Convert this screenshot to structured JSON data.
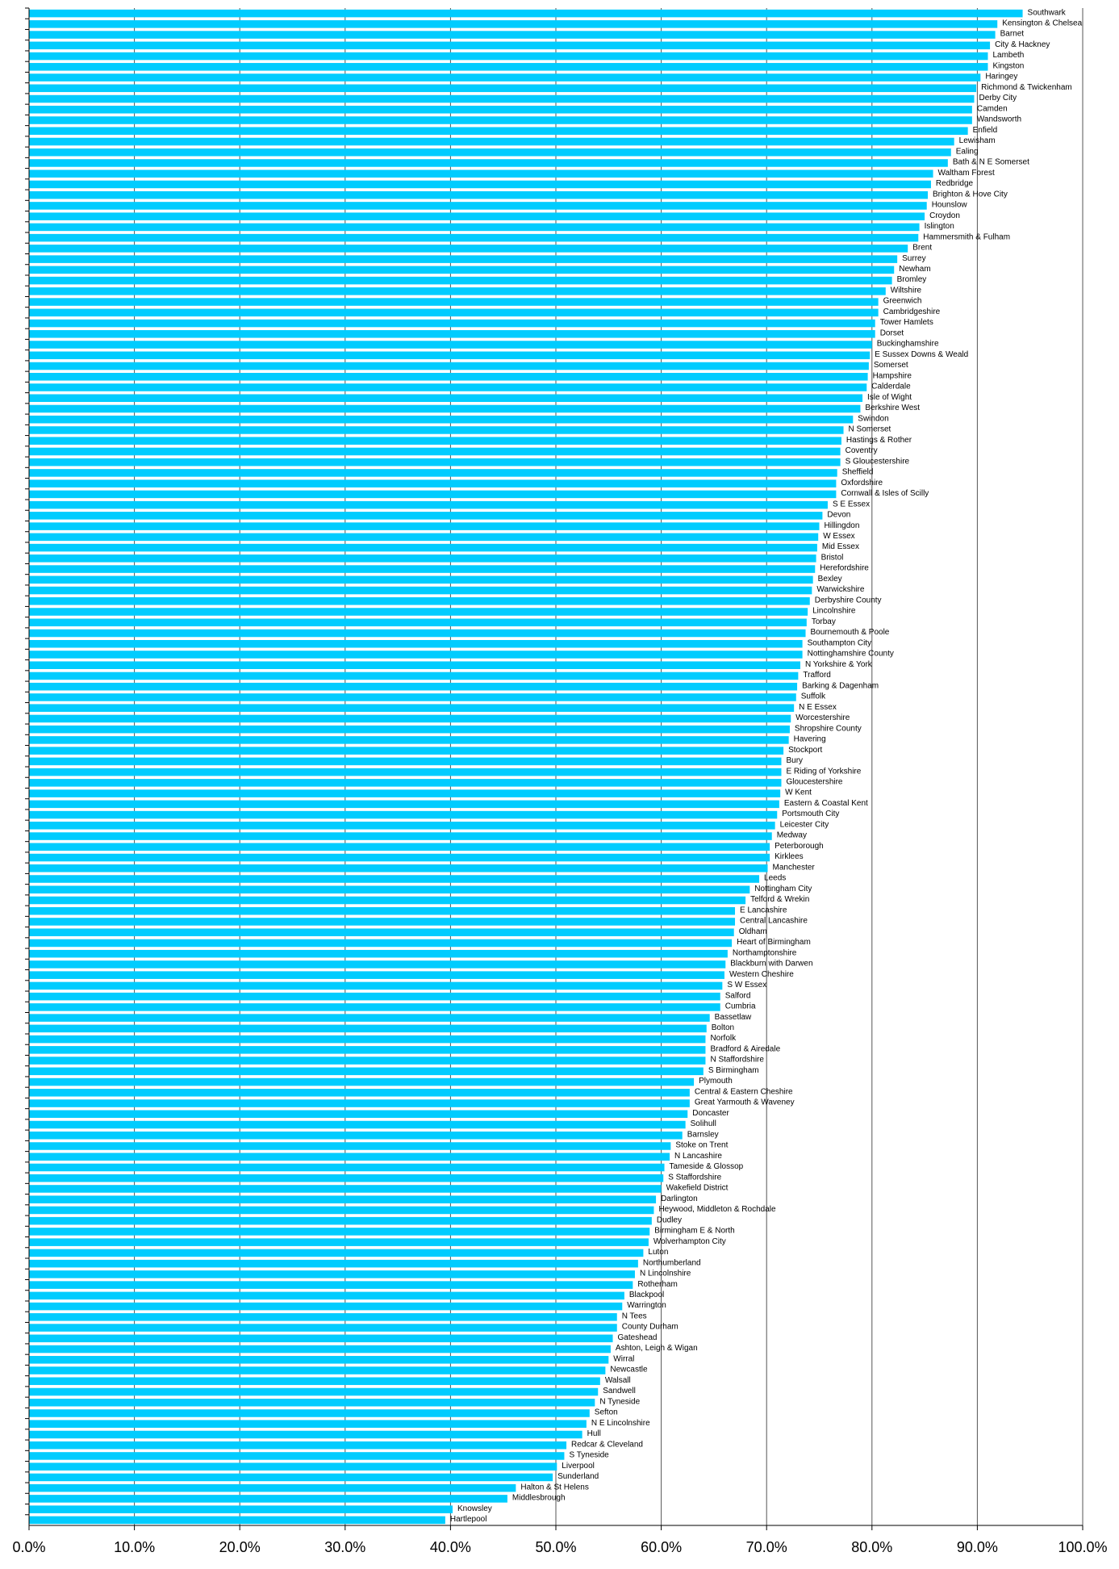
{
  "chart_data": {
    "type": "barh",
    "color": "#00ccff",
    "grid": true,
    "xlim": [
      0,
      100
    ],
    "xticks": [
      {
        "value": 0,
        "label": "0.0%"
      },
      {
        "value": 10,
        "label": "10.0%"
      },
      {
        "value": 20,
        "label": "20.0%"
      },
      {
        "value": 30,
        "label": "30.0%"
      },
      {
        "value": 40,
        "label": "40.0%"
      },
      {
        "value": 50,
        "label": "50.0%"
      },
      {
        "value": 60,
        "label": "60.0%"
      },
      {
        "value": 70,
        "label": "70.0%"
      },
      {
        "value": 80,
        "label": "80.0%"
      },
      {
        "value": 90,
        "label": "90.0%"
      },
      {
        "value": 100,
        "label": "100.0%"
      }
    ],
    "categories": [
      "Southwark",
      "Kensington & Chelsea",
      "Barnet",
      "City & Hackney",
      "Lambeth",
      "Kingston",
      "Haringey",
      "Richmond & Twickenham",
      "Derby City",
      "Camden",
      "Wandsworth",
      "Enfield",
      "Lewisham",
      "Ealing",
      "Bath & N E Somerset",
      "Waltham Forest",
      "Redbridge",
      "Brighton & Hove City",
      "Hounslow",
      "Croydon",
      "Islington",
      "Hammersmith & Fulham",
      "Brent",
      "Surrey",
      "Newham",
      "Bromley",
      "Wiltshire",
      "Greenwich",
      "Cambridgeshire",
      "Tower Hamlets",
      "Dorset",
      "Buckinghamshire",
      "E Sussex Downs & Weald",
      "Somerset",
      "Hampshire",
      "Calderdale",
      "Isle of Wight",
      "Berkshire West",
      "Swindon",
      "N Somerset",
      "Hastings & Rother",
      "Coventry",
      "S Gloucestershire",
      "Sheffield",
      "Oxfordshire",
      "Cornwall & Isles of Scilly",
      "S E Essex",
      "Devon",
      "Hillingdon",
      "W Essex",
      "Mid Essex",
      "Bristol",
      "Herefordshire",
      "Bexley",
      "Warwickshire",
      "Derbyshire County",
      "Lincolnshire",
      "Torbay",
      "Bournemouth & Poole",
      "Southampton City",
      "Nottinghamshire County",
      "N Yorkshire & York",
      "Trafford",
      "Barking & Dagenham",
      "Suffolk",
      "N E Essex",
      "Worcestershire",
      "Shropshire County",
      "Havering",
      "Stockport",
      "Bury",
      "E Riding of Yorkshire",
      "Gloucestershire",
      "W Kent",
      "Eastern & Coastal Kent",
      "Portsmouth City",
      "Leicester City",
      "Medway",
      "Peterborough",
      "Kirklees",
      "Manchester",
      "Leeds",
      "Nottingham City",
      "Telford & Wrekin",
      "E Lancashire",
      "Central Lancashire",
      "Oldham",
      "Heart of Birmingham",
      "Northamptonshire",
      "Blackburn with Darwen",
      "Western Cheshire",
      "S W Essex",
      "Salford",
      "Cumbria",
      "Bassetlaw",
      "Bolton",
      "Norfolk",
      "Bradford & Airedale",
      "N Staffordshire",
      "S Birmingham",
      "Plymouth",
      "Central & Eastern Cheshire",
      "Great Yarmouth & Waveney",
      "Doncaster",
      "Solihull",
      "Barnsley",
      "Stoke on Trent",
      "N Lancashire",
      "Tameside & Glossop",
      "S Staffordshire",
      "Wakefield District",
      "Darlington",
      "Heywood, Middleton & Rochdale",
      "Dudley",
      "Birmingham E & North",
      "Wolverhampton City",
      "Luton",
      "Northumberland",
      "N Lincolnshire",
      "Rotherham",
      "Blackpool",
      "Warrington",
      "N Tees",
      "County Durham",
      "Gateshead",
      "Ashton, Leigh & Wigan",
      "Wirral",
      "Newcastle",
      "Walsall",
      "Sandwell",
      "N Tyneside",
      "Sefton",
      "N E Lincolnshire",
      "Hull",
      "Redcar & Cleveland",
      "S Tyneside",
      "Liverpool",
      "Sunderland",
      "Halton & St Helens",
      "Middlesbrough",
      "Knowsley",
      "Hartlepool"
    ],
    "values": [
      94.3,
      91.9,
      91.7,
      91.2,
      91.0,
      91.0,
      90.3,
      89.9,
      89.7,
      89.5,
      89.5,
      89.1,
      87.8,
      87.5,
      87.2,
      85.8,
      85.6,
      85.3,
      85.2,
      85.0,
      84.5,
      84.4,
      83.4,
      82.4,
      82.1,
      81.9,
      81.3,
      80.6,
      80.6,
      80.3,
      80.3,
      80.0,
      79.8,
      79.7,
      79.6,
      79.5,
      79.1,
      78.9,
      78.2,
      77.3,
      77.1,
      77.0,
      77.0,
      76.7,
      76.6,
      76.6,
      75.8,
      75.3,
      75.0,
      74.9,
      74.8,
      74.7,
      74.6,
      74.4,
      74.3,
      74.1,
      73.9,
      73.8,
      73.7,
      73.4,
      73.4,
      73.2,
      73.0,
      72.9,
      72.8,
      72.6,
      72.3,
      72.2,
      72.1,
      71.6,
      71.4,
      71.4,
      71.4,
      71.3,
      71.2,
      71.0,
      70.8,
      70.5,
      70.3,
      70.3,
      70.1,
      69.3,
      68.4,
      68.0,
      67.0,
      67.0,
      66.9,
      66.7,
      66.3,
      66.1,
      66.0,
      65.8,
      65.6,
      65.6,
      64.6,
      64.3,
      64.2,
      64.2,
      64.2,
      64.0,
      63.1,
      62.7,
      62.7,
      62.5,
      62.3,
      62.0,
      60.9,
      60.8,
      60.3,
      60.2,
      60.0,
      59.5,
      59.3,
      59.1,
      58.9,
      58.8,
      58.3,
      57.8,
      57.5,
      57.3,
      56.5,
      56.3,
      55.8,
      55.8,
      55.4,
      55.2,
      55.0,
      54.7,
      54.2,
      54.0,
      53.7,
      53.2,
      52.9,
      52.5,
      51.0,
      50.8,
      50.1,
      49.7,
      46.2,
      45.4,
      40.2,
      39.5
    ]
  }
}
